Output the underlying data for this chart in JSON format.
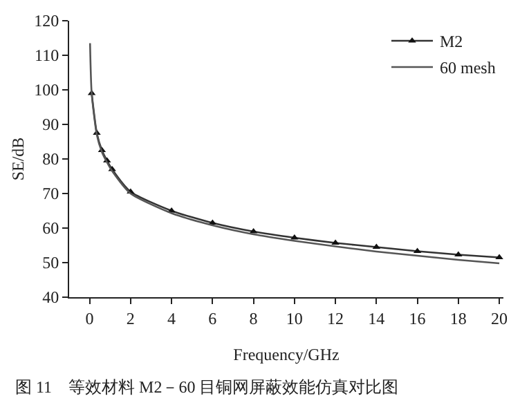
{
  "chart_data": {
    "type": "line",
    "xlabel": "Frequency/GHz",
    "ylabel": "SE/dB",
    "annotations": [
      "图 11　等效材料 M2－60 目铜网屏蔽效能仿真对比图"
    ],
    "xlim": [
      -1,
      20.2
    ],
    "xticks": [
      0,
      2,
      4,
      6,
      8,
      10,
      12,
      14,
      16,
      18,
      20
    ],
    "ylim": [
      40,
      120
    ],
    "yticks": [
      40,
      50,
      60,
      70,
      80,
      90,
      100,
      110,
      120
    ],
    "legend": "top right",
    "series": [
      {
        "name": "M2",
        "color": "#333333",
        "marker": "triangle",
        "x": [
          0.1,
          0.35,
          0.6,
          0.85,
          1.1,
          2,
          4,
          6,
          8,
          10,
          12,
          14,
          16,
          18,
          20
        ],
        "values": [
          99,
          87.5,
          82.5,
          79.5,
          77,
          70.5,
          65,
          61.5,
          59,
          57.2,
          55.7,
          54.5,
          53.3,
          52.3,
          51.5
        ]
      },
      {
        "name": "60 mesh",
        "color": "#555555",
        "marker": "none",
        "x": [
          0.02,
          0.1,
          0.35,
          0.6,
          0.85,
          1.1,
          2,
          4,
          6,
          8,
          10,
          12,
          14,
          16,
          18,
          20
        ],
        "values": [
          113.5,
          99,
          87,
          82,
          79,
          76.5,
          70,
          64.3,
          60.8,
          58.2,
          56.3,
          54.7,
          53.2,
          52,
          50.8,
          49.8
        ]
      }
    ]
  }
}
